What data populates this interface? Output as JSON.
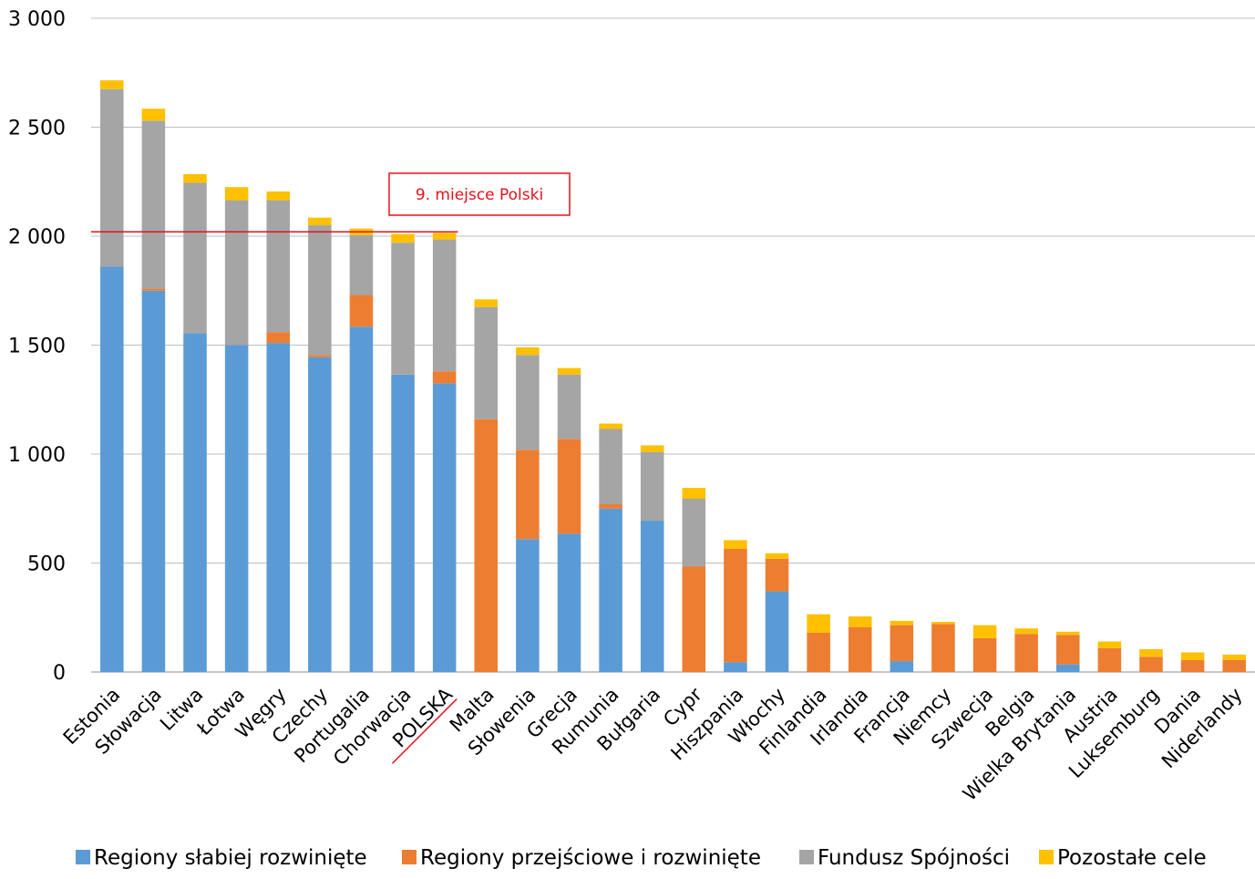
{
  "chart_data": {
    "type": "bar",
    "stacked": true,
    "categories": [
      "Estonia",
      "Słowacja",
      "Litwa",
      "Łotwa",
      "Węgry",
      "Czechy",
      "Portugalia",
      "Chorwacja",
      "POLSKA",
      "Malta",
      "Słowenia",
      "Grecja",
      "Rumunia",
      "Bułgaria",
      "Cypr",
      "Hiszpania",
      "Włochy",
      "Finlandia",
      "Irlandia",
      "Francja",
      "Niemcy",
      "Szwecja",
      "Belgia",
      "Wielka Brytania",
      "Austria",
      "Luksemburg",
      "Dania",
      "Niderlandy"
    ],
    "series": [
      {
        "name": "Regiony słabiej rozwinięte",
        "color": "#5b9bd5",
        "values": [
          1860,
          1750,
          1555,
          1500,
          1510,
          1445,
          1585,
          1365,
          1325,
          0,
          610,
          635,
          750,
          695,
          0,
          45,
          370,
          0,
          0,
          50,
          0,
          0,
          0,
          35,
          0,
          0,
          0,
          0
        ]
      },
      {
        "name": "Regiony przejściowe i rozwinięte",
        "color": "#ed7d31",
        "values": [
          0,
          10,
          0,
          0,
          50,
          10,
          145,
          0,
          55,
          1160,
          410,
          435,
          20,
          0,
          485,
          520,
          150,
          180,
          205,
          165,
          220,
          155,
          175,
          135,
          110,
          70,
          55,
          55
        ]
      },
      {
        "name": "Fundusz Spójności",
        "color": "#a5a5a5",
        "values": [
          815,
          770,
          690,
          665,
          605,
          595,
          275,
          605,
          605,
          515,
          435,
          295,
          345,
          315,
          310,
          0,
          0,
          0,
          0,
          0,
          0,
          0,
          0,
          0,
          0,
          0,
          0,
          0
        ]
      },
      {
        "name": "Pozostałe cele",
        "color": "#ffc000",
        "values": [
          40,
          55,
          40,
          60,
          40,
          35,
          30,
          40,
          30,
          35,
          35,
          30,
          25,
          30,
          50,
          40,
          25,
          85,
          50,
          20,
          10,
          60,
          25,
          15,
          30,
          35,
          35,
          25
        ]
      }
    ],
    "ylim": [
      0,
      3000
    ],
    "yticks": [
      0,
      500,
      1000,
      1500,
      2000,
      2500,
      3000
    ],
    "ytick_labels": [
      "0",
      "500",
      "1 000",
      "1 500",
      "2 000",
      "2 500",
      "3 000"
    ],
    "grid": true,
    "legend_position": "bottom",
    "annotation": {
      "text": "9. miejsce Polski",
      "line_value": 2020,
      "color": "#e3121b",
      "underlined_category": "POLSKA"
    }
  }
}
